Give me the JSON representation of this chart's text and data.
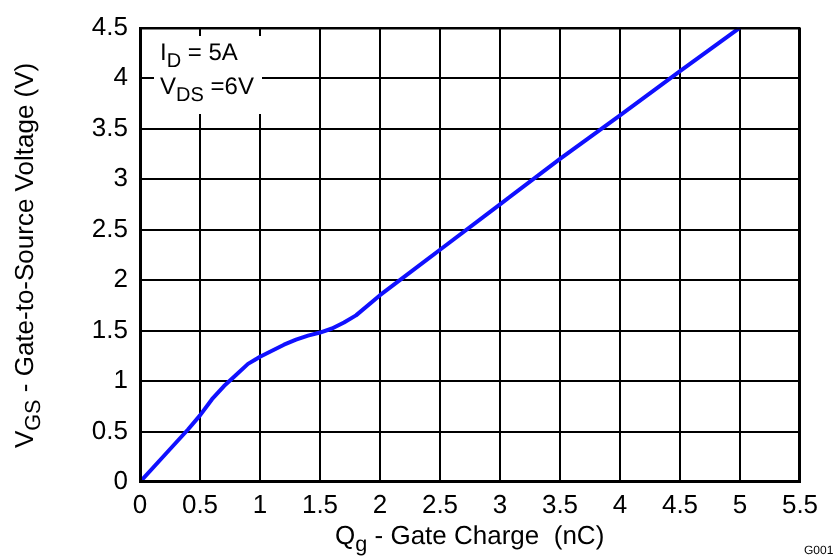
{
  "chart_data": {
    "type": "line",
    "xlabel": "Q$_{g}$ - Gate Charge  (nC)",
    "ylabel": "V$_{GS}$ - Gate-to-Source Voltage (V)",
    "annotations": [
      "I$_{D}$ = 5A",
      "V$_{DS}$ =6V",
      "G001"
    ],
    "x": [
      0,
      0.2,
      0.4,
      0.5,
      0.6,
      0.7,
      0.8,
      0.9,
      1.0,
      1.1,
      1.2,
      1.3,
      1.4,
      1.5,
      1.6,
      1.7,
      1.8,
      2,
      2.5,
      3,
      3.5,
      4,
      4.5,
      5
    ],
    "series": [
      {
        "color": "#1010ff",
        "values": [
          0,
          0.26,
          0.52,
          0.66,
          0.82,
          0.95,
          1.06,
          1.17,
          1.24,
          1.3,
          1.36,
          1.41,
          1.45,
          1.48,
          1.52,
          1.58,
          1.65,
          1.85,
          2.3,
          2.75,
          3.2,
          3.63,
          4.07,
          4.5
        ]
      }
    ],
    "xlim": [
      0,
      5.5
    ],
    "xticks": [
      0,
      0.5,
      1,
      1.5,
      2,
      2.5,
      3,
      3.5,
      4,
      4.5,
      5,
      5.5
    ],
    "ylim": [
      0,
      4.5
    ],
    "yticks": [
      0,
      0.5,
      1,
      1.5,
      2,
      2.5,
      3,
      3.5,
      4,
      4.5
    ],
    "grid": true,
    "legend": false,
    "marker": "none",
    "line_style": "solid"
  }
}
